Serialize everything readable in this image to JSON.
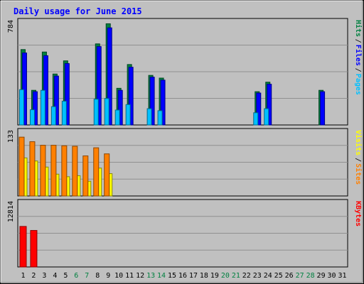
{
  "title": "Daily usage for June 2015",
  "colors": {
    "background": "#C0C0C0",
    "title": "#0000FF",
    "hits": "#008040",
    "files": "#0000FF",
    "pages": "#00C0FF",
    "visits": "#FFFF00",
    "sites": "#FF8000",
    "kbytes": "#FF0000",
    "weekend_label": "#008040",
    "weekday_label": "#000000"
  },
  "legends": {
    "top": [
      {
        "text": "Hits",
        "color": "#008040"
      },
      {
        "text": "Files",
        "color": "#0000FF"
      },
      {
        "text": "Pages",
        "color": "#00C0FF"
      }
    ],
    "middle": [
      {
        "text": "Visits",
        "color": "#FFFF00"
      },
      {
        "text": "Sites",
        "color": "#FF8000"
      }
    ],
    "bottom": [
      {
        "text": "KBytes",
        "color": "#FF0000"
      }
    ]
  },
  "chart_data": [
    {
      "type": "bar",
      "panel": "top",
      "ymax_label": "784",
      "ylim": [
        0,
        784
      ],
      "categories": [
        "1",
        "2",
        "3",
        "4",
        "5",
        "6",
        "7",
        "8",
        "9",
        "10",
        "11",
        "12",
        "13",
        "14",
        "15",
        "16",
        "17",
        "18",
        "19",
        "20",
        "21",
        "22",
        "23",
        "24",
        "25",
        "26",
        "27",
        "28",
        "29",
        "30",
        "31"
      ],
      "series": [
        {
          "name": "Hits",
          "values": [
            555,
            255,
            537,
            375,
            472,
            0,
            0,
            597,
            745,
            270,
            445,
            0,
            365,
            345,
            0,
            0,
            0,
            0,
            0,
            0,
            0,
            0,
            245,
            315,
            0,
            0,
            0,
            0,
            255,
            0,
            0
          ]
        },
        {
          "name": "Files",
          "values": [
            530,
            245,
            510,
            360,
            452,
            0,
            0,
            577,
            715,
            255,
            425,
            0,
            352,
            330,
            0,
            0,
            0,
            0,
            0,
            0,
            0,
            0,
            235,
            300,
            0,
            0,
            0,
            0,
            245,
            0,
            0
          ]
        },
        {
          "name": "Pages",
          "values": [
            260,
            112,
            255,
            135,
            175,
            0,
            0,
            190,
            195,
            110,
            150,
            0,
            120,
            105,
            0,
            0,
            0,
            0,
            0,
            0,
            0,
            0,
            90,
            120,
            0,
            0,
            0,
            0,
            0,
            0,
            0
          ]
        }
      ]
    },
    {
      "type": "bar",
      "panel": "middle",
      "ymax_label": "133",
      "ylim": [
        0,
        133
      ],
      "categories": [
        "1",
        "2",
        "3",
        "4",
        "5",
        "6",
        "7",
        "8",
        "9",
        "10",
        "11",
        "12",
        "13",
        "14",
        "15",
        "16",
        "17",
        "18",
        "19",
        "20",
        "21",
        "22",
        "23",
        "24",
        "25",
        "26",
        "27",
        "28",
        "29",
        "30",
        "31"
      ],
      "series": [
        {
          "name": "Visits",
          "values": [
            75,
            69,
            57,
            43,
            38,
            40,
            29,
            55,
            44,
            0,
            0,
            0,
            0,
            0,
            0,
            0,
            0,
            0,
            0,
            0,
            0,
            0,
            0,
            0,
            0,
            0,
            0,
            0,
            0,
            0,
            0
          ]
        },
        {
          "name": "Sites",
          "values": [
            116,
            107,
            100,
            100,
            99,
            98,
            79,
            95,
            83,
            0,
            0,
            0,
            0,
            0,
            0,
            0,
            0,
            0,
            0,
            0,
            0,
            0,
            0,
            0,
            0,
            0,
            0,
            0,
            0,
            0,
            0
          ]
        }
      ]
    },
    {
      "type": "bar",
      "panel": "bottom",
      "ymax_label": "12814",
      "ylim": [
        0,
        12814
      ],
      "categories": [
        "1",
        "2",
        "3",
        "4",
        "5",
        "6",
        "7",
        "8",
        "9",
        "10",
        "11",
        "12",
        "13",
        "14",
        "15",
        "16",
        "17",
        "18",
        "19",
        "20",
        "21",
        "22",
        "23",
        "24",
        "25",
        "26",
        "27",
        "28",
        "29",
        "30",
        "31"
      ],
      "series": [
        {
          "name": "KBytes",
          "values": [
            7700,
            6935,
            0,
            0,
            0,
            0,
            0,
            0,
            0,
            0,
            0,
            0,
            0,
            0,
            0,
            0,
            0,
            0,
            0,
            0,
            0,
            0,
            0,
            0,
            0,
            0,
            0,
            0,
            0,
            0,
            0
          ]
        }
      ]
    }
  ]
}
